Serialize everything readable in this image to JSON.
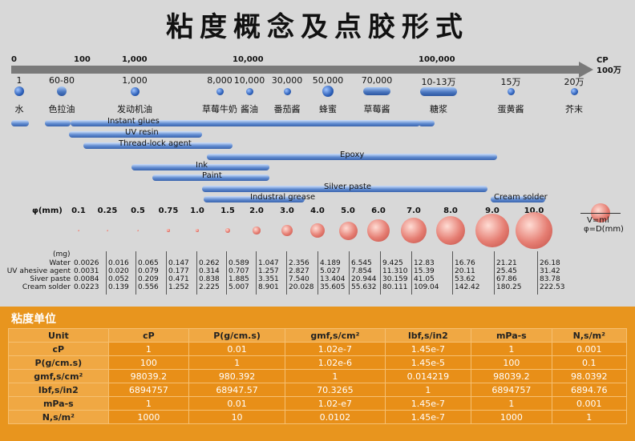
{
  "title": "粘度概念及点胶形式",
  "scale": {
    "ticks": [
      "0",
      "100",
      "1,000",
      "10,000",
      "100,000"
    ],
    "unit": "CP\n100万"
  },
  "fluids": [
    {
      "value": "1",
      "name": "水"
    },
    {
      "value": "60-80",
      "name": "色拉油"
    },
    {
      "value": "1,000",
      "name": "发动机油"
    },
    {
      "value": "8,000",
      "name": "草莓牛奶"
    },
    {
      "value": "10,000",
      "name": "酱油"
    },
    {
      "value": "30,000",
      "name": "番茄酱"
    },
    {
      "value": "50,000",
      "name": "蜂蜜"
    },
    {
      "value": "70,000",
      "name": "草莓酱"
    },
    {
      "value": "10-13万",
      "name": "糖浆"
    },
    {
      "value": "15万",
      "name": "蛋黄酱"
    },
    {
      "value": "20万",
      "name": "芥末"
    }
  ],
  "adhesives": [
    "Instant glues",
    "UV resin",
    "Thread-lock agent",
    "Epoxy",
    "Ink",
    "Paint",
    "Silver paste",
    "Industral grease",
    "Cream solder"
  ],
  "diameter": {
    "label": "φ(mm)",
    "values": [
      "0.1",
      "0.25",
      "0.5",
      "0.75",
      "1.0",
      "1.5",
      "2.0",
      "3.0",
      "4.0",
      "5.0",
      "6.0",
      "7.0",
      "8.0",
      "9.0",
      "10.0"
    ],
    "legend_v": "V=ml",
    "legend_d": "φ=D(mm)"
  },
  "mass": {
    "unit": "(mg)",
    "rows": [
      "Water",
      "UV ahesive agent",
      "Siver paste",
      "Cream solder"
    ],
    "columns": [
      [
        "0.0026",
        "0.0031",
        "0.0084",
        "0.0223"
      ],
      [
        "0.016",
        "0.020",
        "0.052",
        "0.139"
      ],
      [
        "0.065",
        "0.079",
        "0.209",
        "0.556"
      ],
      [
        "0.147",
        "0.177",
        "0.471",
        "1.252"
      ],
      [
        "0.262",
        "0.314",
        "0.838",
        "2.225"
      ],
      [
        "0.589",
        "0.707",
        "1.885",
        "5.007"
      ],
      [
        "1.047",
        "1.257",
        "3.351",
        "8.901"
      ],
      [
        "2.356",
        "2.827",
        "7.540",
        "20.028"
      ],
      [
        "4.189",
        "5.027",
        "13.404",
        "35.605"
      ],
      [
        "6.545",
        "7.854",
        "20.944",
        "55.632"
      ],
      [
        "9.425",
        "11.310",
        "30.159",
        "80.111"
      ],
      [
        "12.83",
        "15.39",
        "41.05",
        "109.04"
      ],
      [
        "16.76",
        "20.11",
        "53.62",
        "142.42"
      ],
      [
        "21.21",
        "25.45",
        "67.86",
        "180.25"
      ],
      [
        "26.18",
        "31.42",
        "83.78",
        "222.53"
      ]
    ]
  },
  "units": {
    "section_title": "粘度单位",
    "header": [
      "Unit",
      "cP",
      "P(g/cm.s)",
      "gmf,s/cm²",
      "lbf,s/in2",
      "mPa-s",
      "N,s/m²"
    ],
    "rows": [
      [
        "cP",
        "1",
        "0.01",
        "1.02e-7",
        "1.45e-7",
        "1",
        "0.001"
      ],
      [
        "P(g/cm.s)",
        "100",
        "1",
        "1.02e-6",
        "1.45e-5",
        "100",
        "0.1"
      ],
      [
        "gmf,s/cm²",
        "98039.2",
        "980.392",
        "1",
        "0.014219",
        "98039.2",
        "98.0392"
      ],
      [
        "lbf,s/in2",
        "6894757",
        "68947.57",
        "70.3265",
        "1",
        "6894757",
        "6894.76"
      ],
      [
        "mPa-s",
        "1",
        "0.01",
        "1.02-e7",
        "1.45e-7",
        "1",
        "0.001"
      ],
      [
        "N,s/m²",
        "1000",
        "10",
        "0.0102",
        "1.45e-7",
        "1000",
        "1"
      ]
    ]
  },
  "colors": {
    "orange": "#e8951e",
    "blue": "#2c5fb8",
    "ball": "#e57d72"
  }
}
